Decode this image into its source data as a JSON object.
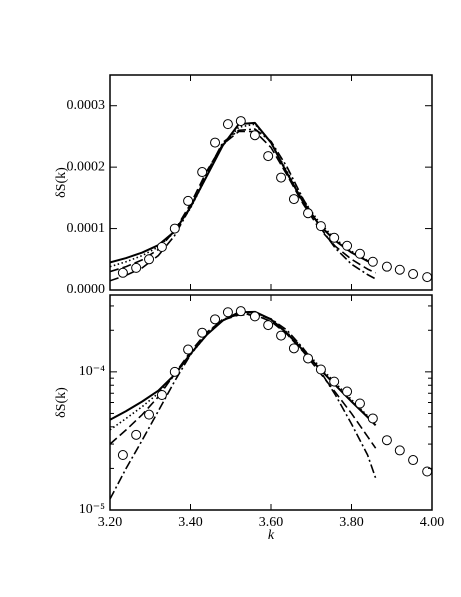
{
  "chart_data": [
    {
      "type": "line",
      "ylabel": "δS(k)",
      "log_scale": false,
      "xlim": [
        3.2,
        4.0
      ],
      "xticks": [
        3.2,
        3.4,
        3.6,
        3.8,
        4.0
      ],
      "ylim": [
        0,
        0.00035
      ],
      "yticks": [
        {
          "value": 0,
          "label": "0.0000"
        },
        {
          "value": 0.0001,
          "label": "0.0001"
        },
        {
          "value": 0.0002,
          "label": "0.0002"
        },
        {
          "value": 0.0003,
          "label": "0.0003"
        }
      ],
      "series": [
        {
          "style": "solid",
          "color": "#000000",
          "x": [
            3.2,
            3.24,
            3.28,
            3.32,
            3.36,
            3.4,
            3.44,
            3.48,
            3.52,
            3.56,
            3.6,
            3.64,
            3.68,
            3.72,
            3.76,
            3.8,
            3.84,
            3.86
          ],
          "values": [
            4.5e-05,
            5.2e-05,
            6.1e-05,
            7.3e-05,
            9.5e-05,
            0.000135,
            0.000185,
            0.000235,
            0.00027,
            0.000272,
            0.00024,
            0.00019,
            0.000143,
            0.000106,
            8e-05,
            6.1e-05,
            4.7e-05,
            4.1e-05
          ]
        },
        {
          "style": "dotted",
          "color": "#000000",
          "x": [
            3.2,
            3.24,
            3.28,
            3.32,
            3.36,
            3.4,
            3.44,
            3.48,
            3.52,
            3.56,
            3.6,
            3.64,
            3.68,
            3.72,
            3.76,
            3.8,
            3.84,
            3.86
          ],
          "values": [
            3.8e-05,
            4.6e-05,
            5.6e-05,
            7e-05,
            9.4e-05,
            0.000133,
            0.000185,
            0.000235,
            0.000265,
            0.00027,
            0.00024,
            0.000193,
            0.000147,
            0.00011,
            8.3e-05,
            6.3e-05,
            4.8e-05,
            4.3e-05
          ]
        },
        {
          "style": "dashed",
          "color": "#000000",
          "x": [
            3.2,
            3.24,
            3.28,
            3.32,
            3.36,
            3.4,
            3.44,
            3.48,
            3.52,
            3.56,
            3.6,
            3.64,
            3.68,
            3.72,
            3.76,
            3.8,
            3.84,
            3.86
          ],
          "values": [
            3e-05,
            3.8e-05,
            4.9e-05,
            6.6e-05,
            9.6e-05,
            0.00014,
            0.000193,
            0.000237,
            0.000258,
            0.000258,
            0.000232,
            0.000187,
            0.00014,
            0.0001,
            7.1e-05,
            5e-05,
            3.4e-05,
            2.8e-05
          ]
        },
        {
          "style": "dashdot",
          "color": "#000000",
          "x": [
            3.2,
            3.24,
            3.28,
            3.32,
            3.36,
            3.4,
            3.44,
            3.48,
            3.52,
            3.56,
            3.6,
            3.64,
            3.68,
            3.72,
            3.76,
            3.8,
            3.84,
            3.86
          ],
          "values": [
            1.5e-05,
            2.4e-05,
            3.6e-05,
            5.6e-05,
            8.8e-05,
            0.000135,
            0.00019,
            0.00024,
            0.00026,
            0.000262,
            0.000242,
            0.0002,
            0.000148,
            0.000104,
            6.8e-05,
            4.2e-05,
            2.5e-05,
            1.8e-05
          ]
        },
        {
          "style": "circle",
          "color": "#000000",
          "x": [
            3.232,
            3.265,
            3.297,
            3.329,
            3.361,
            3.394,
            3.429,
            3.461,
            3.493,
            3.525,
            3.56,
            3.593,
            3.625,
            3.657,
            3.692,
            3.724,
            3.757,
            3.789,
            3.821,
            3.853,
            3.888,
            3.92,
            3.953,
            3.988
          ],
          "values": [
            2.8e-05,
            3.6e-05,
            5e-05,
            7e-05,
            0.0001,
            0.000145,
            0.000192,
            0.00024,
            0.00027,
            0.000275,
            0.000252,
            0.000218,
            0.000183,
            0.000148,
            0.000125,
            0.000104,
            8.5e-05,
            7.2e-05,
            5.9e-05,
            4.6e-05,
            3.8e-05,
            3.3e-05,
            2.6e-05,
            2.1e-05
          ]
        }
      ]
    },
    {
      "type": "line",
      "ylabel": "δS(k)",
      "xlabel": "k",
      "log_scale": true,
      "xlim": [
        3.2,
        4.0
      ],
      "xticks": [
        {
          "value": 3.2,
          "label": "3.20"
        },
        {
          "value": 3.4,
          "label": "3.40"
        },
        {
          "value": 3.6,
          "label": "3.60"
        },
        {
          "value": 3.8,
          "label": "3.80"
        },
        {
          "value": 4.0,
          "label": "4.00"
        }
      ],
      "ylim": [
        1e-05,
        0.00036
      ],
      "yticks": [
        {
          "value": 1e-05,
          "label": "10⁻⁵"
        },
        {
          "value": 0.0001,
          "label": "10⁻⁴"
        }
      ],
      "series": [
        {
          "style": "solid",
          "color": "#000000",
          "x": [
            3.2,
            3.24,
            3.28,
            3.32,
            3.36,
            3.4,
            3.44,
            3.48,
            3.52,
            3.56,
            3.6,
            3.64,
            3.68,
            3.72,
            3.76,
            3.8,
            3.84,
            3.86
          ],
          "values": [
            4.5e-05,
            5.2e-05,
            6.1e-05,
            7.3e-05,
            9.5e-05,
            0.000135,
            0.000185,
            0.000235,
            0.00027,
            0.000272,
            0.00024,
            0.00019,
            0.000143,
            0.000106,
            8e-05,
            6.1e-05,
            4.7e-05,
            4.1e-05
          ]
        },
        {
          "style": "dotted",
          "color": "#000000",
          "x": [
            3.2,
            3.24,
            3.28,
            3.32,
            3.36,
            3.4,
            3.44,
            3.48,
            3.52,
            3.56,
            3.6,
            3.64,
            3.68,
            3.72,
            3.76,
            3.8,
            3.84,
            3.86
          ],
          "values": [
            3.8e-05,
            4.6e-05,
            5.6e-05,
            7e-05,
            9.4e-05,
            0.000133,
            0.000185,
            0.000235,
            0.000265,
            0.00027,
            0.00024,
            0.000193,
            0.000147,
            0.00011,
            8.3e-05,
            6.3e-05,
            4.8e-05,
            4.3e-05
          ]
        },
        {
          "style": "dashed",
          "color": "#000000",
          "x": [
            3.2,
            3.24,
            3.28,
            3.32,
            3.36,
            3.4,
            3.44,
            3.48,
            3.52,
            3.56,
            3.6,
            3.64,
            3.68,
            3.72,
            3.76,
            3.8,
            3.84,
            3.86
          ],
          "values": [
            3e-05,
            3.8e-05,
            4.9e-05,
            6.6e-05,
            9.6e-05,
            0.00014,
            0.000193,
            0.000237,
            0.000258,
            0.000258,
            0.000232,
            0.000187,
            0.00014,
            0.0001,
            7.1e-05,
            5e-05,
            3.4e-05,
            2.8e-05
          ]
        },
        {
          "style": "dashdot",
          "color": "#000000",
          "x": [
            3.2,
            3.24,
            3.28,
            3.32,
            3.36,
            3.4,
            3.44,
            3.48,
            3.52,
            3.56,
            3.6,
            3.64,
            3.68,
            3.72,
            3.76,
            3.8,
            3.84,
            3.86
          ],
          "values": [
            1.2e-05,
            2e-05,
            3.2e-05,
            5.2e-05,
            8.5e-05,
            0.000133,
            0.00019,
            0.00024,
            0.00026,
            0.000262,
            0.000242,
            0.0002,
            0.000148,
            0.000104,
            6.8e-05,
            4.2e-05,
            2.5e-05,
            1.7e-05
          ]
        },
        {
          "style": "circle",
          "color": "#000000",
          "x": [
            3.232,
            3.265,
            3.297,
            3.329,
            3.361,
            3.394,
            3.429,
            3.461,
            3.493,
            3.525,
            3.56,
            3.593,
            3.625,
            3.657,
            3.692,
            3.724,
            3.757,
            3.789,
            3.821,
            3.853,
            3.888,
            3.92,
            3.953,
            3.988
          ],
          "values": [
            2.5e-05,
            3.5e-05,
            4.9e-05,
            6.8e-05,
            0.0001,
            0.000145,
            0.000192,
            0.00024,
            0.00027,
            0.000275,
            0.000252,
            0.000218,
            0.000183,
            0.000148,
            0.000125,
            0.000104,
            8.5e-05,
            7.2e-05,
            5.9e-05,
            4.6e-05,
            3.2e-05,
            2.7e-05,
            2.3e-05,
            1.9e-05
          ]
        }
      ]
    }
  ]
}
